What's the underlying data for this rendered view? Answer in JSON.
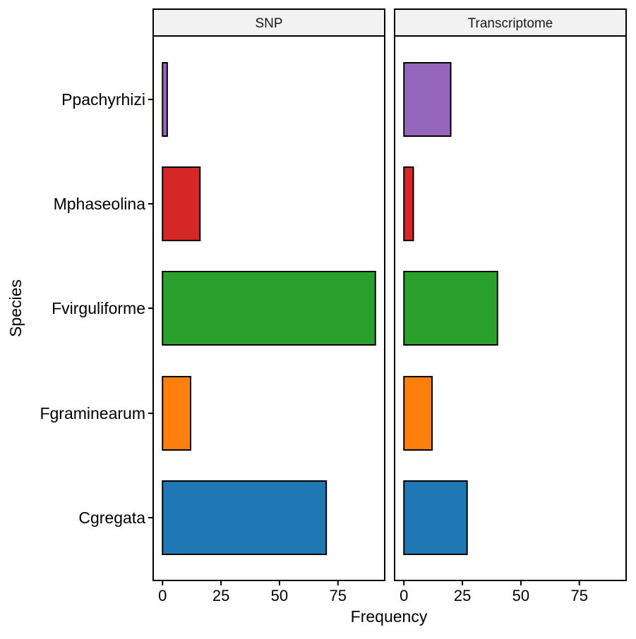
{
  "chart_data": {
    "type": "bar",
    "orientation": "horizontal",
    "xlabel": "Frequency",
    "ylabel": "Species",
    "xlim": [
      -4,
      95
    ],
    "x_ticks": [
      0,
      25,
      50,
      75
    ],
    "categories": [
      "Ppachyrhizi",
      "Mphaseolina",
      "Fvirguliforme",
      "Fgraminearum",
      "Cgregata"
    ],
    "colors": {
      "Ppachyrhizi": "#9467BD",
      "Mphaseolina": "#D62728",
      "Fvirguliforme": "#2CA02C",
      "Fgraminearum": "#FF7F0E",
      "Cgregata": "#1F77B4"
    },
    "panel_strip_color": "#F2F2F2",
    "grid": false,
    "legend": "none",
    "panels": [
      {
        "title": "SNP",
        "values": {
          "Ppachyrhizi": 2,
          "Mphaseolina": 16,
          "Fvirguliforme": 91,
          "Fgraminearum": 12,
          "Cgregata": 70
        }
      },
      {
        "title": "Transcriptome",
        "values": {
          "Ppachyrhizi": 20,
          "Mphaseolina": 4,
          "Fvirguliforme": 40,
          "Fgraminearum": 12,
          "Cgregata": 27
        }
      }
    ]
  }
}
